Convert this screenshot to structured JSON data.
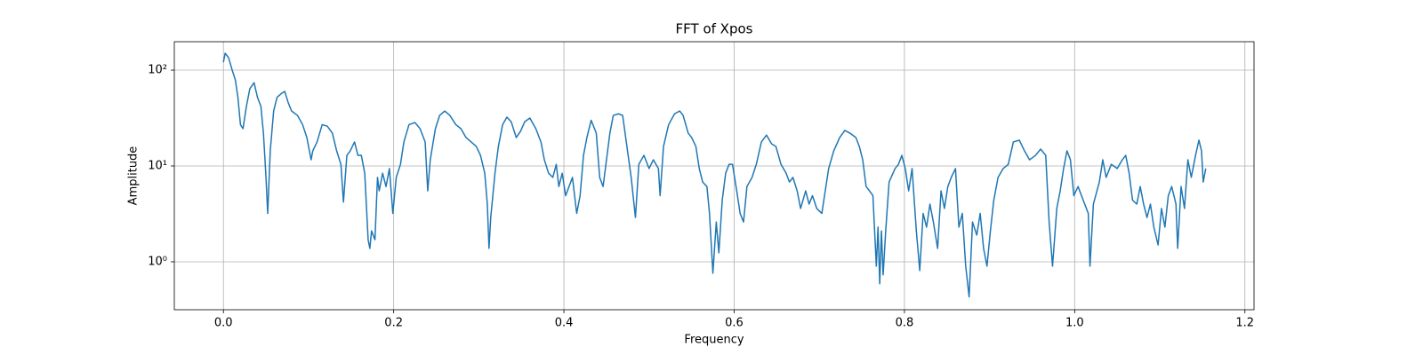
{
  "chart_data": {
    "type": "line",
    "title": "FFT of Xpos",
    "xlabel": "Frequency",
    "ylabel": "Amplitude",
    "log_y": true,
    "grid": true,
    "xlim": [
      -0.0577,
      1.2107
    ],
    "ylim": [
      0.316,
      198
    ],
    "xticks": [
      {
        "value": 0,
        "label": "0.0"
      },
      0.2,
      0.4,
      0.6,
      0.8,
      {
        "value": 1,
        "label": "1.0"
      },
      1.2
    ],
    "yticks": [
      {
        "value": 1,
        "label": "10⁰"
      },
      {
        "value": 10,
        "label": "10¹"
      },
      {
        "value": 100,
        "label": "10²"
      }
    ],
    "x": [
      0,
      0.002,
      0.006,
      0.01,
      0.014,
      0.017,
      0.02,
      0.023,
      0.027,
      0.031,
      0.036,
      0.04,
      0.044,
      0.047,
      0.05,
      0.052,
      0.055,
      0.059,
      0.063,
      0.068,
      0.072,
      0.076,
      0.08,
      0.087,
      0.093,
      0.098,
      0.103,
      0.105,
      0.11,
      0.116,
      0.122,
      0.128,
      0.133,
      0.138,
      0.141,
      0.145,
      0.149,
      0.154,
      0.158,
      0.162,
      0.166,
      0.17,
      0.172,
      0.174,
      0.178,
      0.181,
      0.183,
      0.187,
      0.191,
      0.195,
      0.199,
      0.203,
      0.208,
      0.212,
      0.218,
      0.225,
      0.231,
      0.237,
      0.24,
      0.243,
      0.249,
      0.254,
      0.26,
      0.266,
      0.273,
      0.279,
      0.285,
      0.291,
      0.297,
      0.302,
      0.307,
      0.31,
      0.312,
      0.314,
      0.319,
      0.323,
      0.328,
      0.333,
      0.338,
      0.344,
      0.349,
      0.354,
      0.36,
      0.367,
      0.373,
      0.377,
      0.382,
      0.387,
      0.391,
      0.394,
      0.398,
      0.402,
      0.406,
      0.41,
      0.415,
      0.419,
      0.423,
      0.427,
      0.432,
      0.438,
      0.442,
      0.446,
      0.45,
      0.454,
      0.458,
      0.464,
      0.469,
      0.474,
      0.479,
      0.484,
      0.488,
      0.494,
      0.5,
      0.505,
      0.511,
      0.513,
      0.517,
      0.523,
      0.53,
      0.536,
      0.54,
      0.546,
      0.55,
      0.555,
      0.559,
      0.563,
      0.568,
      0.571,
      0.575,
      0.579,
      0.582,
      0.586,
      0.59,
      0.594,
      0.598,
      0.603,
      0.607,
      0.611,
      0.615,
      0.621,
      0.626,
      0.632,
      0.638,
      0.644,
      0.649,
      0.655,
      0.661,
      0.665,
      0.669,
      0.674,
      0.678,
      0.684,
      0.688,
      0.692,
      0.697,
      0.703,
      0.707,
      0.711,
      0.717,
      0.724,
      0.73,
      0.736,
      0.743,
      0.747,
      0.751,
      0.755,
      0.759,
      0.763,
      0.767,
      0.769,
      0.771,
      0.773,
      0.775,
      0.778,
      0.782,
      0.789,
      0.793,
      0.797,
      0.801,
      0.805,
      0.809,
      0.814,
      0.818,
      0.822,
      0.826,
      0.83,
      0.834,
      0.839,
      0.843,
      0.847,
      0.851,
      0.855,
      0.86,
      0.864,
      0.868,
      0.872,
      0.876,
      0.88,
      0.885,
      0.889,
      0.893,
      0.897,
      0.901,
      0.905,
      0.91,
      0.916,
      0.922,
      0.928,
      0.935,
      0.941,
      0.947,
      0.954,
      0.96,
      0.966,
      0.97,
      0.974,
      0.979,
      0.983,
      0.987,
      0.991,
      0.995,
      0.999,
      1.004,
      1.01,
      1.016,
      1.018,
      1.022,
      1.029,
      1.033,
      1.037,
      1.043,
      1.05,
      1.056,
      1.06,
      1.064,
      1.068,
      1.073,
      1.077,
      1.081,
      1.085,
      1.089,
      1.093,
      1.098,
      1.102,
      1.106,
      1.11,
      1.114,
      1.119,
      1.121,
      1.125,
      1.129,
      1.133,
      1.137,
      1.142,
      1.146,
      1.149,
      1.151,
      1.154
    ],
    "series": [
      {
        "name": "Xpos",
        "color": "#1f77b4",
        "values": [
          121,
          150,
          135,
          102,
          79,
          52,
          27,
          24.5,
          42,
          64,
          74,
          52,
          42,
          22,
          7.6,
          3.2,
          14.4,
          37.5,
          52,
          57,
          60,
          46,
          37.5,
          33.7,
          27,
          19.8,
          11.6,
          14.4,
          17.8,
          27,
          26,
          22,
          14.4,
          10.4,
          4.2,
          12.9,
          14.4,
          17.8,
          12.9,
          12.9,
          8.4,
          1.7,
          1.38,
          2.1,
          1.7,
          7.6,
          5.5,
          8.4,
          6.1,
          9.4,
          3.2,
          7.6,
          10.4,
          17.8,
          27,
          28.4,
          24.5,
          17.8,
          5.5,
          11.6,
          24.5,
          33.7,
          37.5,
          33.7,
          27,
          24.5,
          19.8,
          17.8,
          16,
          12.9,
          8.4,
          4,
          1.38,
          2.9,
          8.4,
          16,
          27,
          32.3,
          29,
          19.8,
          23,
          29,
          31.6,
          24.5,
          17.8,
          11.6,
          8.4,
          7.6,
          10.4,
          6.1,
          8.4,
          4.9,
          6.1,
          7.6,
          3.2,
          4.9,
          12.9,
          19.8,
          30,
          22,
          7.6,
          6.1,
          11.6,
          22,
          33.7,
          35,
          33.7,
          16,
          7.6,
          2.9,
          10.4,
          12.9,
          9.4,
          11.6,
          9.4,
          4.9,
          16,
          27,
          35,
          37.5,
          33.7,
          22,
          19.8,
          16,
          9.4,
          6.8,
          6.1,
          3.2,
          0.76,
          2.6,
          1.24,
          4.4,
          8.4,
          10.4,
          10.4,
          5.5,
          3.2,
          2.6,
          6.1,
          7.6,
          10.4,
          17.8,
          21,
          17,
          16,
          10.4,
          8.4,
          6.8,
          7.6,
          5.5,
          3.6,
          5.5,
          4,
          4.9,
          3.6,
          3.2,
          5.5,
          9.4,
          14.4,
          19.8,
          23.5,
          22,
          19.8,
          16,
          11.6,
          6.1,
          5.5,
          4.9,
          0.9,
          2.3,
          0.59,
          2.1,
          0.73,
          2.1,
          6.8,
          9.4,
          10.4,
          12.9,
          9.4,
          5.5,
          9.4,
          2.1,
          0.81,
          3.2,
          2.3,
          4,
          2.6,
          1.38,
          5.5,
          3.6,
          6.1,
          7.6,
          9.4,
          2.3,
          3.2,
          0.9,
          0.43,
          2.6,
          1.9,
          3.2,
          1.38,
          0.9,
          2.1,
          4.4,
          7.6,
          9.4,
          10.4,
          17.8,
          18.6,
          14.4,
          11.6,
          12.9,
          15,
          12.9,
          2.6,
          0.9,
          3.6,
          5.5,
          9.4,
          14.4,
          11.6,
          4.9,
          6.1,
          4.4,
          3.2,
          0.9,
          4,
          6.8,
          11.6,
          7.6,
          10.4,
          9.4,
          11.6,
          12.9,
          8.4,
          4.4,
          4,
          6.1,
          4,
          2.9,
          4,
          2.3,
          1.5,
          3.6,
          2.3,
          4.9,
          6.1,
          4,
          1.38,
          6.1,
          3.6,
          11.6,
          7.6,
          12.9,
          18.6,
          14.4,
          6.8,
          9.4
        ]
      }
    ]
  }
}
